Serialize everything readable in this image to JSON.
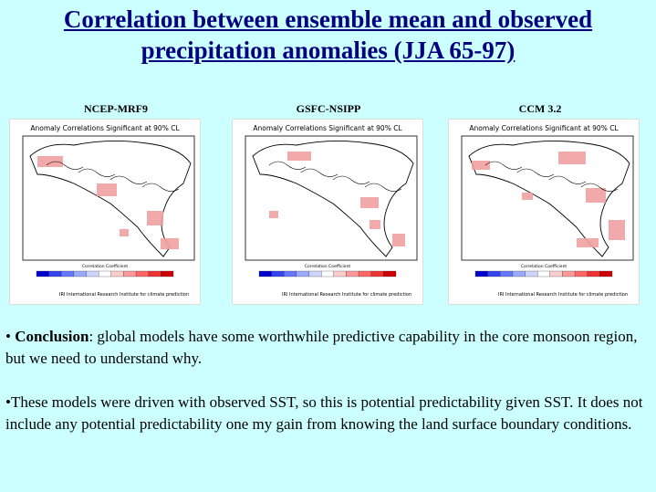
{
  "title": {
    "line1": "Correlation between ensemble mean and observed",
    "line2": "precipitation anomalies (JJA 65-97)"
  },
  "panels": [
    {
      "label": "NCEP-MRF9",
      "map_title": "Anomaly Correlations Significant at 90% CL",
      "legend_caption": "Correlation Coefficient",
      "footer": "IRI International Research Institute for climate prediction"
    },
    {
      "label": "GSFC-NSIPP",
      "map_title": "Anomaly Correlations Significant at 90% CL",
      "legend_caption": "Correlation Coefficient",
      "footer": "IRI International Research Institute for climate prediction"
    },
    {
      "label": "CCM 3.2",
      "map_title": "Anomaly Correlations Significant at 90% CL",
      "legend_caption": "Correlation Coefficient",
      "footer": "IRI International Research Institute for climate prediction"
    }
  ],
  "bullets": [
    {
      "marker": "•",
      "bold": "Conclusion",
      "text": ": global models have some worthwhile predictive capability in the core monsoon region, but we need to understand why."
    },
    {
      "marker": "•",
      "bold": "",
      "text": "These models were driven with observed SST, so this is potential predictability given SST.  It does not include any potential predictability one my gain from knowing the land surface boundary conditions."
    }
  ],
  "legend_colors": [
    "#0000cc",
    "#3344ee",
    "#6677ff",
    "#99aaff",
    "#ccd4ff",
    "#ffffff",
    "#ffcccc",
    "#ff9999",
    "#ff6666",
    "#ee3333",
    "#cc0000"
  ],
  "anomaly_color": "#f0a0a0"
}
